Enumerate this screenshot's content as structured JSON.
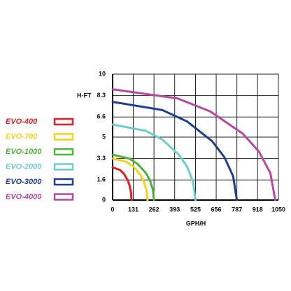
{
  "chart_data": {
    "type": "line",
    "ylabel": "H-FT",
    "xlabel": "GPH/H",
    "xlim": [
      0,
      1050
    ],
    "ylim": [
      0,
      10
    ],
    "xticks": [
      0,
      131,
      262,
      393,
      525,
      656,
      787,
      918,
      1050
    ],
    "yticks": [
      0,
      1.6,
      3.3,
      5,
      6.6,
      8.3,
      10
    ],
    "grid": true,
    "legend": "left",
    "series": [
      {
        "name": "EVO-400",
        "color": "#e31e24",
        "x": [
          0,
          48,
          72,
          96,
          108,
          116,
          120
        ],
        "values": [
          2.6,
          2.38,
          2.08,
          1.56,
          1.13,
          0.63,
          0
        ]
      },
      {
        "name": "EVO-700",
        "color": "#f3d21b",
        "x": [
          0,
          88,
          133,
          177,
          199,
          214,
          221
        ],
        "values": [
          3.3,
          3.03,
          2.64,
          1.98,
          1.44,
          0.8,
          0
        ]
      },
      {
        "name": "EVO-1000",
        "color": "#4fb33a",
        "x": [
          0,
          105,
          157,
          210,
          236,
          254,
          262
        ],
        "values": [
          3.6,
          3.3,
          2.88,
          2.16,
          1.57,
          0.87,
          0
        ]
      },
      {
        "name": "EVO-2000",
        "color": "#6ccbd3",
        "x": [
          0,
          210,
          315,
          420,
          473,
          509,
          525
        ],
        "values": [
          6.0,
          5.5,
          4.8,
          3.6,
          2.62,
          1.46,
          0
        ]
      },
      {
        "name": "EVO-3000",
        "color": "#1f3d91",
        "x": [
          0,
          315,
          472,
          630,
          708,
          763,
          787
        ],
        "values": [
          7.8,
          7.15,
          6.24,
          4.68,
          3.4,
          1.9,
          0
        ]
      },
      {
        "name": "EVO-4000",
        "color": "#b5489f",
        "x": [
          0,
          412,
          618,
          824,
          927,
          999,
          1030
        ],
        "values": [
          8.8,
          8.07,
          7.04,
          5.28,
          3.84,
          2.14,
          0
        ]
      }
    ]
  }
}
